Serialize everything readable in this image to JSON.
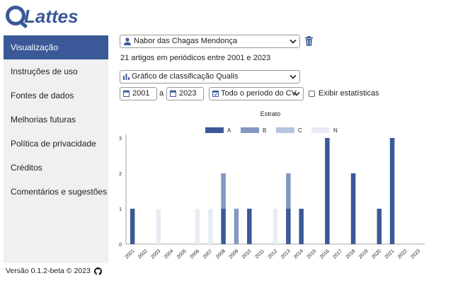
{
  "app": {
    "logo_text": "Lattes"
  },
  "sidebar": {
    "items": [
      {
        "label": "Visualização",
        "active": true
      },
      {
        "label": "Instruções de uso",
        "active": false
      },
      {
        "label": "Fontes de dados",
        "active": false
      },
      {
        "label": "Melhorias futuras",
        "active": false
      },
      {
        "label": "Política de privacidade",
        "active": false
      },
      {
        "label": "Créditos",
        "active": false
      },
      {
        "label": "Comentários e sugestões",
        "active": false
      }
    ]
  },
  "footer": {
    "version": "Versão 0.1.2-beta © 2023"
  },
  "controls": {
    "researcher": "Nabor das Chagas Mendonça",
    "summary": "21 artigos em periódicos entre 2001 e 2023",
    "chart_type": "Gráfico de classificação Qualis",
    "year_from": "2001",
    "year_to_label": "a",
    "year_to": "2023",
    "period": "Todo o período do CV",
    "stats_label": "Exibir estatísticas",
    "stats_checked": false
  },
  "colors": {
    "accent": "#3b5998",
    "A": "#3b5998",
    "B": "#8298c0",
    "C": "#b7c4de",
    "N": "#e8ecf4"
  },
  "chart_data": {
    "type": "bar",
    "stacked": true,
    "title": "Estrato",
    "legend_position": "top",
    "categories": [
      "2001",
      "2002",
      "2003",
      "2004",
      "2005",
      "2006",
      "2007",
      "2008",
      "2009",
      "2010",
      "2011",
      "2012",
      "2013",
      "2014",
      "2015",
      "2016",
      "2017",
      "2018",
      "2019",
      "2020",
      "2021",
      "2022",
      "2023"
    ],
    "series": [
      {
        "name": "A",
        "values": [
          1,
          0,
          0,
          0,
          0,
          0,
          0,
          1,
          0,
          1,
          0,
          0,
          1,
          1,
          0,
          3,
          0,
          2,
          0,
          1,
          3,
          0,
          0
        ]
      },
      {
        "name": "B",
        "values": [
          0,
          0,
          0,
          0,
          0,
          0,
          0,
          1,
          1,
          0,
          0,
          0,
          1,
          0,
          0,
          0,
          0,
          0,
          0,
          0,
          0,
          0,
          0
        ]
      },
      {
        "name": "C",
        "values": [
          0,
          0,
          0,
          0,
          0,
          0,
          0,
          0,
          0,
          0,
          0,
          0,
          0,
          0,
          0,
          0,
          0,
          0,
          0,
          0,
          0,
          0,
          0
        ]
      },
      {
        "name": "N",
        "values": [
          0,
          0,
          1,
          0,
          0,
          1,
          1,
          0,
          0,
          0,
          0,
          1,
          0,
          0,
          0,
          0,
          0,
          0,
          0,
          0,
          0,
          0,
          0
        ]
      }
    ],
    "ylim": [
      0,
      3
    ],
    "yticks": [
      "0",
      "1",
      "2",
      "3"
    ],
    "grid": false
  }
}
